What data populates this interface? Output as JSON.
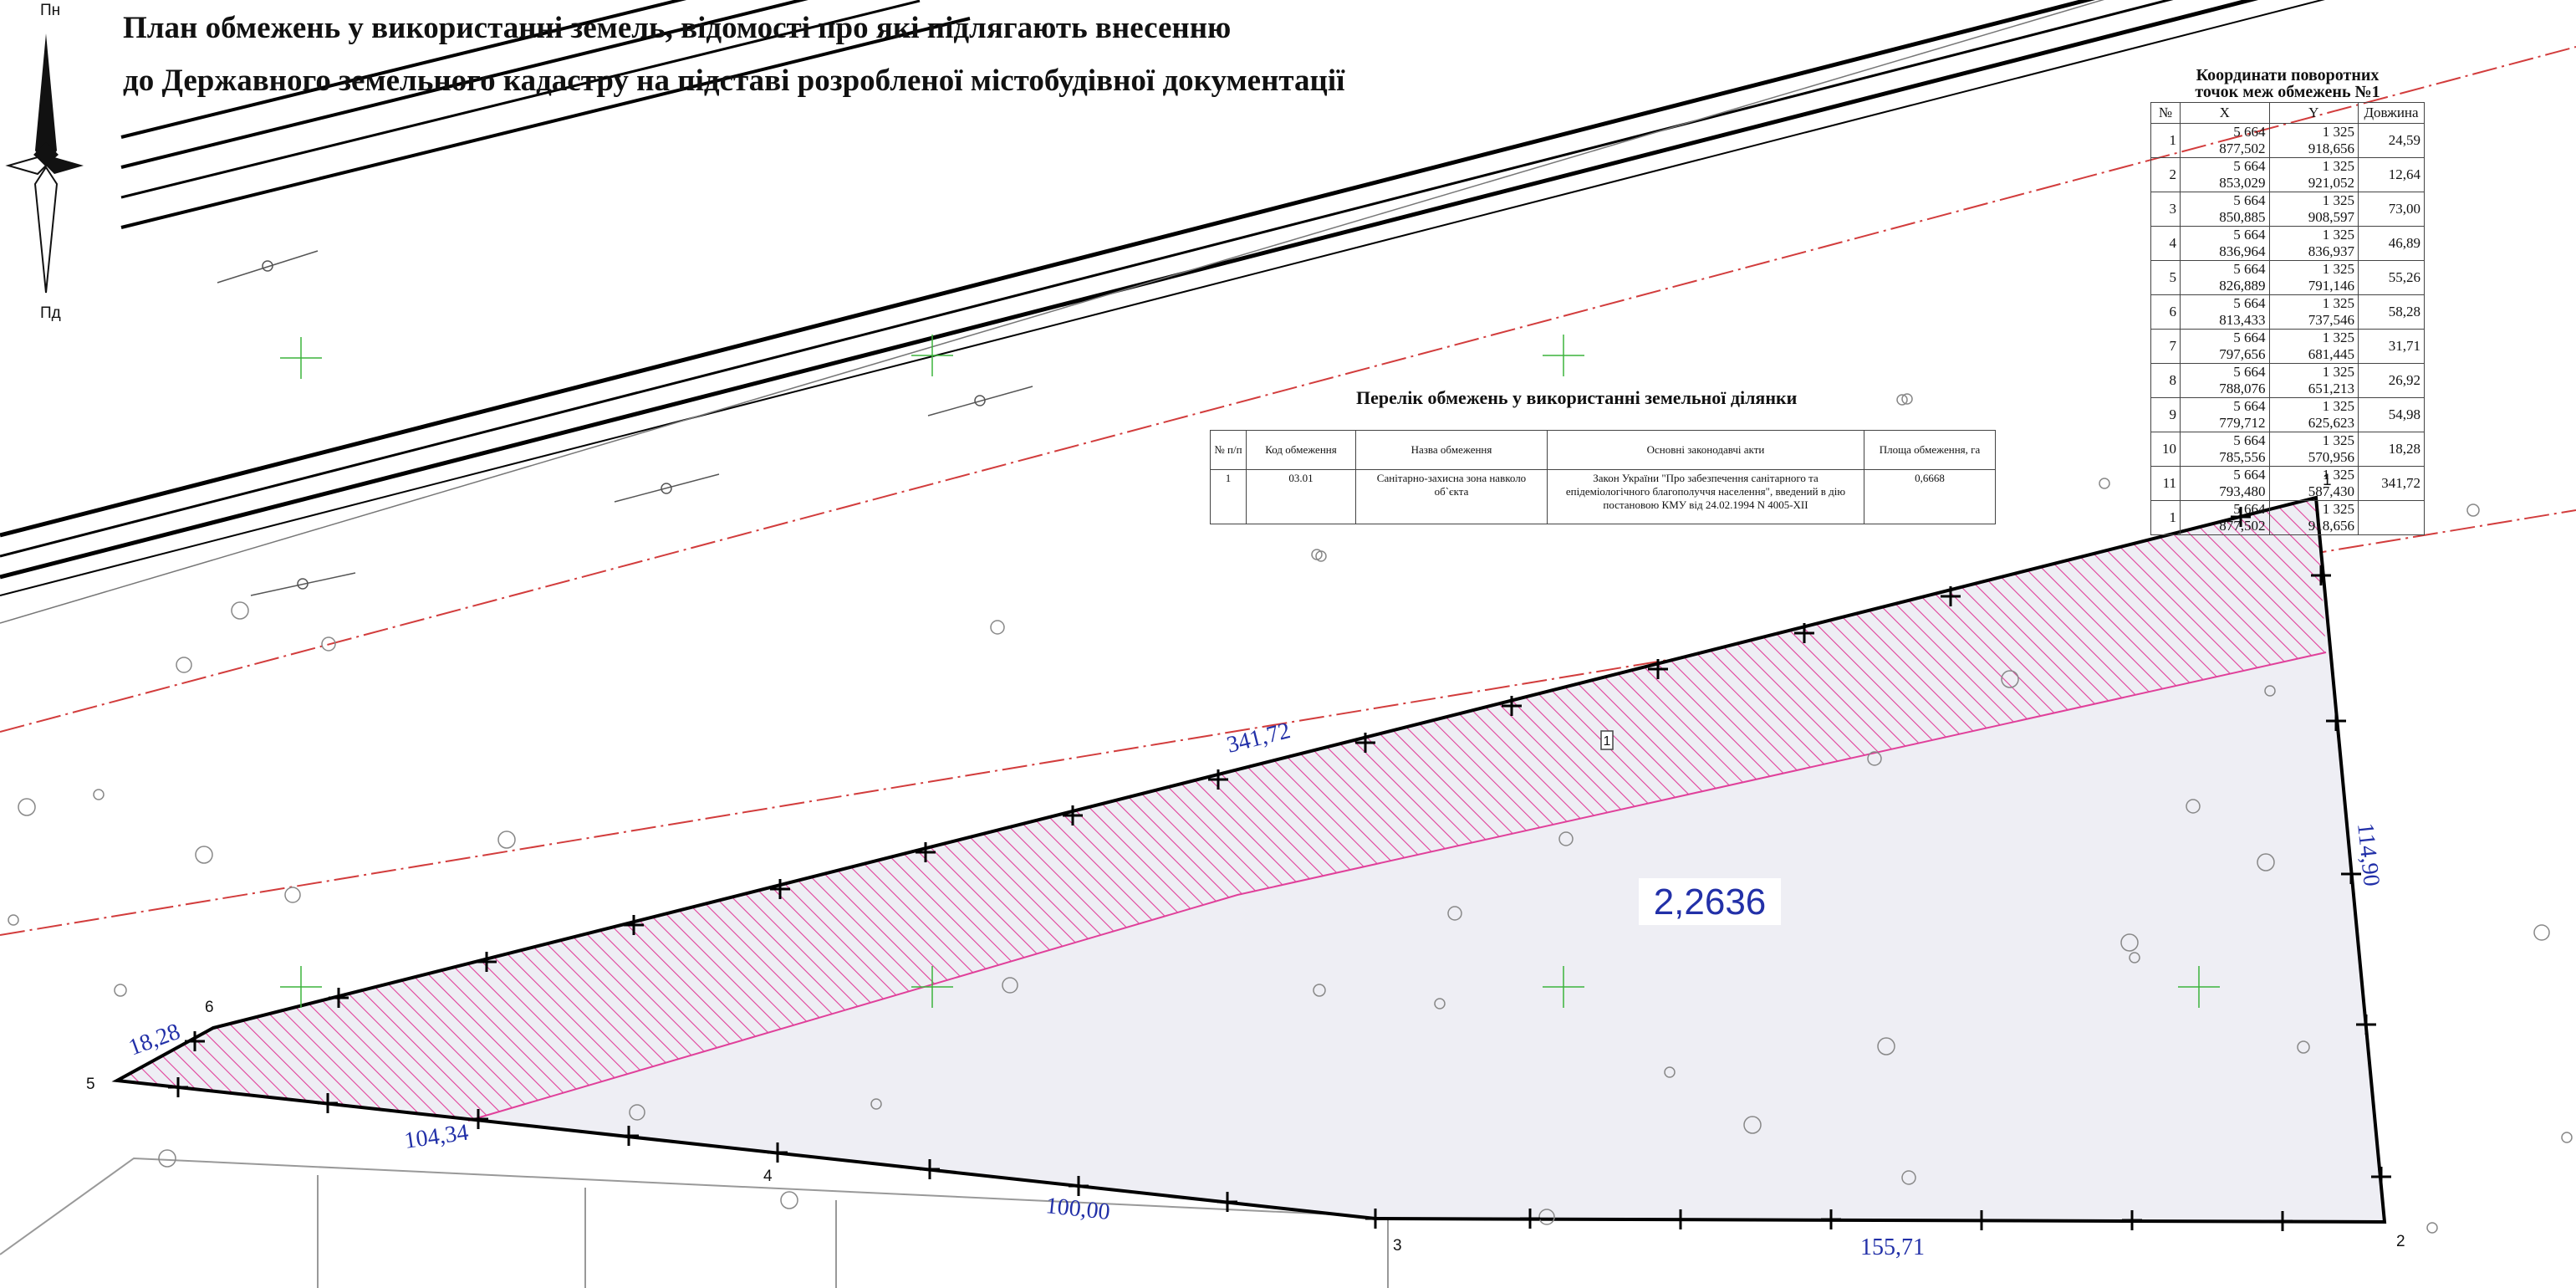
{
  "title": {
    "line1": "План обмежень у використанні земель, відомості про які підлягають внесенню",
    "line2": "до Державного земельного кадастру на підставі розробленої містобудівної документації"
  },
  "compass": {
    "north": "Пн",
    "south": "Пд"
  },
  "coord_table": {
    "title_line1": "Координати поворотних",
    "title_line2": "точок меж обмежень №1",
    "headers": [
      "№",
      "X",
      "Y",
      "Довжина"
    ],
    "rows": [
      [
        "1",
        "5 664 877,502",
        "1 325 918,656",
        "24,59"
      ],
      [
        "2",
        "5 664 853,029",
        "1 325 921,052",
        "12,64"
      ],
      [
        "3",
        "5 664 850,885",
        "1 325 908,597",
        "73,00"
      ],
      [
        "4",
        "5 664 836,964",
        "1 325 836,937",
        "46,89"
      ],
      [
        "5",
        "5 664 826,889",
        "1 325 791,146",
        "55,26"
      ],
      [
        "6",
        "5 664 813,433",
        "1 325 737,546",
        "58,28"
      ],
      [
        "7",
        "5 664 797,656",
        "1 325 681,445",
        "31,71"
      ],
      [
        "8",
        "5 664 788,076",
        "1 325 651,213",
        "26,92"
      ],
      [
        "9",
        "5 664 779,712",
        "1 325 625,623",
        "54,98"
      ],
      [
        "10",
        "5 664 785,556",
        "1 325 570,956",
        "18,28"
      ],
      [
        "11",
        "5 664 793,480",
        "1 325 587,430",
        "341,72"
      ],
      [
        "1",
        "5 664 877,502",
        "1 325 918,656",
        ""
      ]
    ]
  },
  "restrictions": {
    "title": "Перелік обмежень у використанні земельної ділянки",
    "headers": [
      "№ п/п",
      "Код обмеження",
      "Назва обмеження",
      "Основні законодавчі акти",
      "Площа обмеження, га"
    ],
    "rows": [
      [
        "1",
        "03.01",
        "Санітарно-захисна зона навколо об`єкта",
        "Закон України \"Про забезпечення санітарного та епідеміологічного благополуччя населення\", введений в дію постановою КМУ від 24.02.1994 N 4005-XII",
        "0,6668"
      ]
    ]
  },
  "plot": {
    "area": "2,2636",
    "zone_number": "1",
    "point_labels": [
      "1",
      "2",
      "3",
      "4",
      "5",
      "6"
    ],
    "edge_lengths": [
      "341,72",
      "114,90",
      "155,71",
      "100,00",
      "104,34",
      "18,28"
    ]
  },
  "colors": {
    "hatch": "#e0409a",
    "parcel_fill": "#eeeef4",
    "boundary": "#000000",
    "dim_text": "#2230a8",
    "road_red": "#d23c3c",
    "grid_cross": "#3cb43c"
  }
}
